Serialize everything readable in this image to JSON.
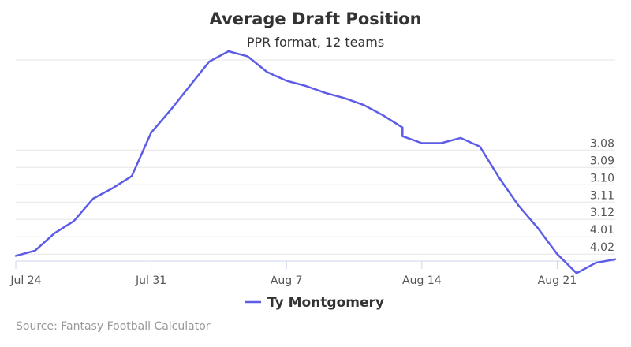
{
  "chart_data": {
    "type": "line",
    "title": "Average Draft Position",
    "subtitle": "PPR format, 12 teams",
    "x_ticks": [
      "Jul 24",
      "Jul 31",
      "Aug 7",
      "Aug 14",
      "Aug 21"
    ],
    "y_ticks": [
      "3.08",
      "3.09",
      "3.10",
      "3.11",
      "3.12",
      "4.01",
      "4.02"
    ],
    "y_axis_side": "right",
    "y_reversed": true,
    "ylim_picks": [
      26.8,
      38.4
    ],
    "grid": true,
    "legend_position": "bottom-center",
    "series": [
      {
        "name": "Ty Montgomery",
        "color": "#5c5ce6",
        "points": [
          {
            "date": "Jul 24",
            "pick": 38.1
          },
          {
            "date": "Jul 25",
            "pick": 37.8
          },
          {
            "date": "Jul 26",
            "pick": 36.8
          },
          {
            "date": "Jul 27",
            "pick": 36.1
          },
          {
            "date": "Jul 28",
            "pick": 34.8
          },
          {
            "date": "Jul 29",
            "pick": 34.2
          },
          {
            "date": "Jul 30",
            "pick": 33.5
          },
          {
            "date": "Jul 31",
            "pick": 31.0
          },
          {
            "date": "Aug 1",
            "pick": 29.7
          },
          {
            "date": "Aug 2",
            "pick": 28.3
          },
          {
            "date": "Aug 3",
            "pick": 26.9
          },
          {
            "date": "Aug 4",
            "pick": 26.3
          },
          {
            "date": "Aug 5",
            "pick": 26.6
          },
          {
            "date": "Aug 6",
            "pick": 27.5
          },
          {
            "date": "Aug 7",
            "pick": 28.0
          },
          {
            "date": "Aug 8",
            "pick": 28.3
          },
          {
            "date": "Aug 9",
            "pick": 28.7
          },
          {
            "date": "Aug 10",
            "pick": 29.0
          },
          {
            "date": "Aug 11",
            "pick": 29.4
          },
          {
            "date": "Aug 12",
            "pick": 30.0
          },
          {
            "date": "Aug 13",
            "pick": 30.7
          },
          {
            "date": "Aug 13",
            "pick": 31.2
          },
          {
            "date": "Aug 14",
            "pick": 31.6
          },
          {
            "date": "Aug 15",
            "pick": 31.6
          },
          {
            "date": "Aug 16",
            "pick": 31.3
          },
          {
            "date": "Aug 17",
            "pick": 31.8
          },
          {
            "date": "Aug 18",
            "pick": 33.6
          },
          {
            "date": "Aug 19",
            "pick": 35.2
          },
          {
            "date": "Aug 20",
            "pick": 36.5
          },
          {
            "date": "Aug 21",
            "pick": 38.0
          },
          {
            "date": "Aug 22",
            "pick": 39.1
          },
          {
            "date": "Aug 23",
            "pick": 38.5
          },
          {
            "date": "Aug 24",
            "pick": 38.3
          }
        ]
      }
    ]
  },
  "credits": "Source: Fantasy Football Calculator"
}
